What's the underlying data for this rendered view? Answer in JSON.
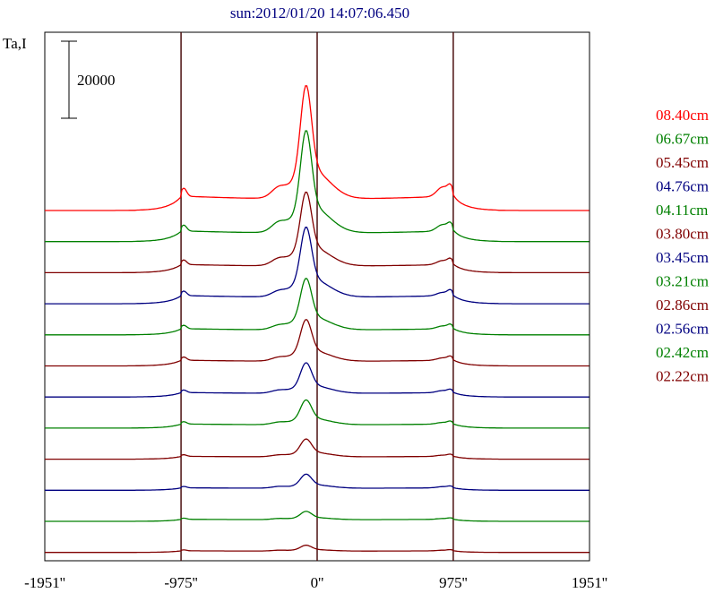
{
  "chart_data": {
    "type": "line",
    "title": "sun:2012/01/20 14:07:06.450",
    "ylabel": "Ta,I",
    "scale_bar_label": "20000",
    "scale_bar_value": 20000,
    "xlim": [
      -1951,
      1951
    ],
    "x_tick_labels": [
      "-1951''",
      "-975''",
      "0''",
      "975''",
      "1951''"
    ],
    "x_ticks": [
      -1951,
      -975,
      0,
      975,
      1951
    ],
    "vertical_lines": [
      -975,
      0,
      975
    ],
    "grid": false,
    "legend_position": "right",
    "colors": {
      "red": "#ff0000",
      "green": "#008000",
      "maroon": "#800000",
      "navy": "#000080",
      "axis": "#000000",
      "vline": "#400000"
    },
    "series": [
      {
        "name": "08.40cm",
        "color": "#ff0000",
        "peak": 31000,
        "limb": 3500,
        "bump_left": 1800,
        "bump_right": 2300,
        "offset": 0
      },
      {
        "name": "06.67cm",
        "color": "#008000",
        "peak": 27500,
        "limb": 2600,
        "bump_left": 1700,
        "bump_right": 1600,
        "offset": 1
      },
      {
        "name": "05.45cm",
        "color": "#800000",
        "peak": 20000,
        "limb": 2000,
        "bump_left": 1200,
        "bump_right": 1000,
        "offset": 2
      },
      {
        "name": "04.76cm",
        "color": "#000080",
        "peak": 19000,
        "limb": 2000,
        "bump_left": 900,
        "bump_right": 800,
        "offset": 3
      },
      {
        "name": "04.11cm",
        "color": "#008000",
        "peak": 14000,
        "limb": 1500,
        "bump_left": 700,
        "bump_right": 700,
        "offset": 4
      },
      {
        "name": "03.80cm",
        "color": "#800000",
        "peak": 11500,
        "limb": 1400,
        "bump_left": 600,
        "bump_right": 600,
        "offset": 5
      },
      {
        "name": "03.45cm",
        "color": "#000080",
        "peak": 8500,
        "limb": 1100,
        "bump_left": 500,
        "bump_right": 500,
        "offset": 6
      },
      {
        "name": "03.21cm",
        "color": "#008000",
        "peak": 7000,
        "limb": 1000,
        "bump_left": 400,
        "bump_right": 400,
        "offset": 7
      },
      {
        "name": "02.86cm",
        "color": "#800000",
        "peak": 5000,
        "limb": 700,
        "bump_left": 300,
        "bump_right": 300,
        "offset": 8
      },
      {
        "name": "02.56cm",
        "color": "#000080",
        "peak": 4000,
        "limb": 600,
        "bump_left": 300,
        "bump_right": 300,
        "offset": 9
      },
      {
        "name": "02.42cm",
        "color": "#008000",
        "peak": 2500,
        "limb": 500,
        "bump_left": 200,
        "bump_right": 200,
        "offset": 10
      },
      {
        "name": "02.22cm",
        "color": "#800000",
        "peak": 1800,
        "limb": 400,
        "bump_left": 150,
        "bump_right": 150,
        "offset": 11
      }
    ]
  }
}
